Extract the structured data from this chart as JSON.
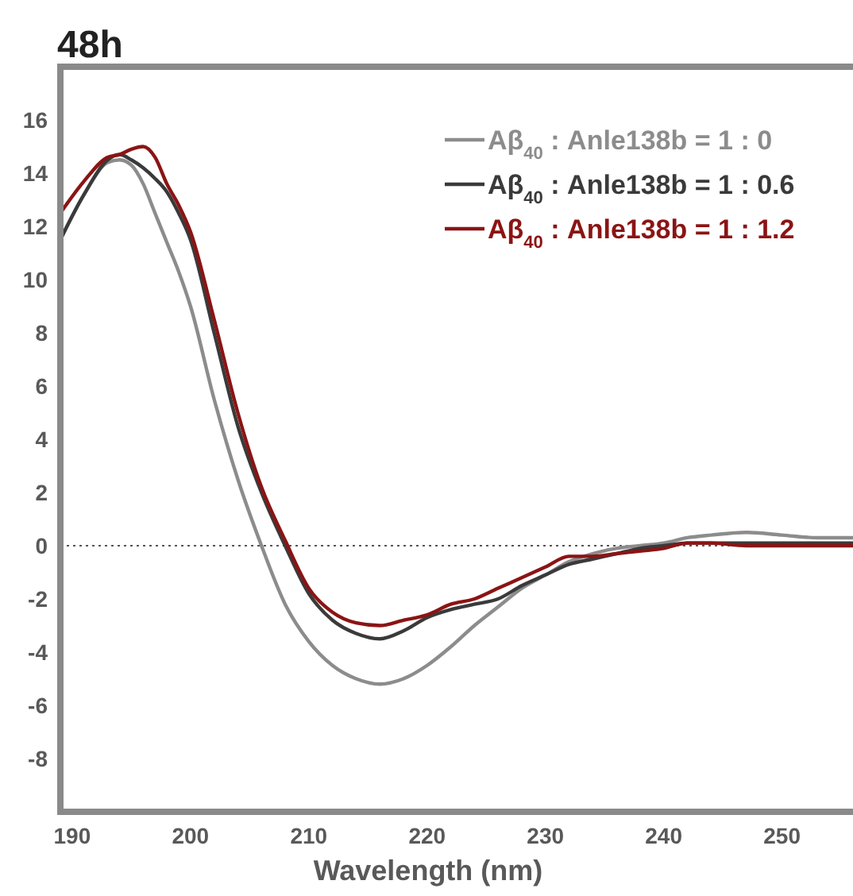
{
  "chart_data": {
    "type": "line",
    "title": "48h",
    "xlabel": "Wavelength (nm)",
    "xlim": [
      189,
      256
    ],
    "xticks": [
      190,
      200,
      210,
      220,
      230,
      240,
      250
    ],
    "ylim": [
      -10,
      18
    ],
    "yticks": [
      -8,
      -6,
      -4,
      -2,
      0,
      2,
      4,
      6,
      8,
      10,
      12,
      14,
      16
    ],
    "legend": "top right",
    "grid": false,
    "line_style": "solid",
    "marker": "none",
    "ref_lines": [
      {
        "axis": "y",
        "value": 0,
        "color": "#555555",
        "line_style": "dotted"
      }
    ],
    "x": [
      189,
      191,
      193,
      194,
      195,
      196,
      197,
      198,
      199,
      200,
      202,
      204,
      206,
      208,
      210,
      212,
      214,
      216,
      218,
      220,
      222,
      224,
      226,
      228,
      230,
      232,
      234,
      236,
      238,
      240,
      242,
      244,
      247,
      250,
      253,
      256
    ],
    "series": [
      {
        "name": "Aβ$_{40}$ : Anle138b = 1 : 0",
        "color": "#8c8c8c",
        "values": [
          11.5,
          13.2,
          14.4,
          14.5,
          14.3,
          13.6,
          12.5,
          11.4,
          10.3,
          9,
          5.5,
          2.5,
          0,
          -2.2,
          -3.6,
          -4.5,
          -5,
          -5.2,
          -5,
          -4.5,
          -3.8,
          -3,
          -2.3,
          -1.6,
          -1.1,
          -0.6,
          -0.3,
          -0.1,
          0,
          0.1,
          0.3,
          0.4,
          0.5,
          0.4,
          0.3,
          0.3
        ]
      },
      {
        "name": "Aβ$_{40}$ : Anle138b = 1 : 0.6",
        "color": "#3a3a3a",
        "values": [
          11.5,
          13.2,
          14.5,
          14.7,
          14.5,
          14.2,
          13.8,
          13.3,
          12.5,
          11.5,
          8,
          4.5,
          2,
          0,
          -1.8,
          -2.8,
          -3.3,
          -3.5,
          -3.2,
          -2.7,
          -2.4,
          -2.2,
          -2,
          -1.5,
          -1.1,
          -0.7,
          -0.5,
          -0.3,
          -0.1,
          0,
          0.1,
          0.1,
          0.1,
          0.1,
          0.1,
          0.1
        ]
      },
      {
        "name": "Aβ$_{40}$ : Anle138b = 1 : 1.2",
        "color": "#8b1414",
        "values": [
          12.5,
          13.7,
          14.6,
          14.7,
          14.9,
          15,
          14.6,
          13.6,
          12.8,
          11.8,
          8.5,
          5,
          2.2,
          0.2,
          -1.6,
          -2.5,
          -2.9,
          -3,
          -2.8,
          -2.6,
          -2.2,
          -2,
          -1.6,
          -1.2,
          -0.8,
          -0.4,
          -0.4,
          -0.3,
          -0.2,
          -0.1,
          0.1,
          0.1,
          0,
          0,
          0,
          0
        ]
      }
    ]
  }
}
